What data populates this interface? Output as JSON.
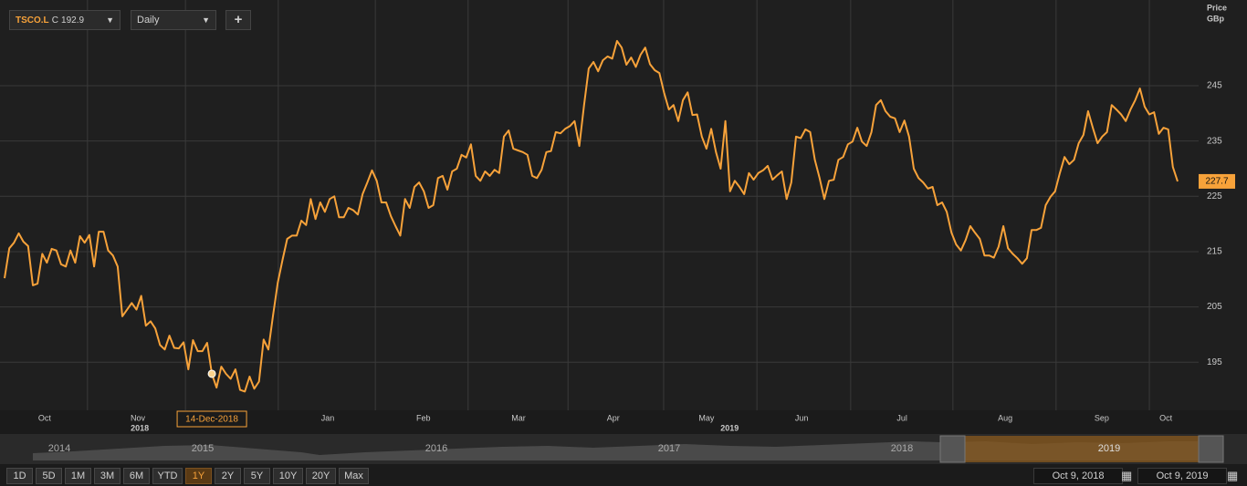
{
  "toolbar": {
    "close_label": "C",
    "interval": "Daily",
    "add": "+"
  },
  "chart_data": {
    "type": "line",
    "series": [
      {
        "name": "TSCO.L",
        "color": "#f7a23a",
        "values": [
          210.2,
          215.6,
          216.6,
          218.3,
          216.8,
          216.0,
          208.9,
          209.2,
          214.6,
          213.0,
          215.5,
          215.2,
          212.7,
          212.3,
          215.2,
          213.0,
          217.8,
          216.6,
          218.0,
          212.3,
          218.6,
          218.6,
          215.2,
          214.3,
          212.3,
          203.3,
          204.5,
          205.7,
          204.5,
          207.0,
          201.6,
          202.4,
          201.1,
          198.1,
          197.3,
          199.8,
          197.6,
          197.5,
          198.6,
          193.7,
          199.0,
          197.0,
          197.0,
          198.5,
          192.9,
          190.4,
          194.2,
          192.9,
          192.0,
          193.7,
          190.0,
          189.7,
          192.4,
          190.2,
          191.5,
          199.1,
          197.3,
          203.6,
          209.4,
          213.5,
          217.3,
          217.9,
          217.9,
          220.6,
          219.8,
          224.5,
          220.9,
          223.9,
          222.2,
          224.5,
          225.0,
          221.2,
          221.2,
          222.9,
          222.5,
          221.7,
          225.4,
          227.5,
          229.7,
          227.8,
          223.9,
          223.9,
          221.4,
          219.6,
          217.9,
          224.5,
          222.9,
          226.7,
          227.5,
          225.9,
          222.9,
          223.4,
          228.3,
          228.7,
          226.2,
          229.5,
          230.0,
          232.5,
          232.0,
          234.4,
          228.7,
          227.8,
          229.5,
          228.7,
          229.8,
          229.2,
          235.8,
          236.9,
          233.6,
          233.3,
          233.0,
          232.5,
          228.7,
          228.3,
          229.8,
          233.0,
          233.2,
          236.6,
          236.4,
          237.2,
          237.7,
          238.6,
          234.1,
          241.5,
          248.1,
          249.3,
          247.6,
          249.6,
          250.3,
          249.9,
          253.1,
          251.9,
          248.8,
          250.1,
          248.4,
          250.6,
          251.9,
          248.9,
          247.8,
          247.3,
          243.7,
          240.7,
          241.5,
          238.6,
          242.4,
          243.8,
          239.7,
          239.8,
          235.8,
          233.6,
          237.2,
          233.0,
          230.0,
          238.6,
          225.9,
          227.8,
          226.7,
          225.4,
          229.2,
          228.0,
          229.2,
          229.7,
          230.5,
          228.0,
          228.8,
          229.5,
          224.5,
          227.5,
          235.8,
          235.5,
          237.1,
          236.6,
          231.6,
          228.3,
          224.5,
          227.8,
          228.0,
          231.6,
          232.1,
          234.4,
          234.9,
          237.4,
          234.9,
          234.1,
          236.6,
          241.5,
          242.4,
          240.4,
          239.4,
          239.1,
          236.6,
          238.7,
          235.8,
          230.0,
          228.3,
          227.5,
          226.4,
          226.7,
          223.4,
          223.9,
          222.2,
          218.4,
          216.3,
          215.2,
          217.1,
          219.6,
          218.4,
          217.3,
          214.3,
          214.3,
          213.9,
          215.9,
          219.6,
          215.6,
          214.6,
          213.8,
          212.8,
          213.8,
          218.9,
          218.9,
          219.3,
          223.4,
          224.9,
          225.9,
          229.2,
          232.1,
          230.8,
          231.6,
          234.6,
          236.1,
          240.4,
          237.4,
          234.6,
          235.8,
          236.6,
          241.5,
          240.7,
          239.8,
          238.6,
          240.7,
          242.4,
          244.5,
          241.2,
          239.8,
          240.2,
          236.3,
          237.4,
          237.1,
          230.3,
          227.7
        ]
      }
    ],
    "ylim": [
      186.3,
      260.5
    ],
    "yticks": [
      195,
      205,
      215,
      225,
      235,
      245
    ],
    "y_axis_label": [
      "Price",
      "GBp"
    ],
    "xticks": [
      {
        "value": 8.5,
        "label": "Oct"
      },
      {
        "value": 28.3,
        "label": "Nov"
      },
      {
        "value": 68.6,
        "label": "Jan"
      },
      {
        "value": 88.9,
        "label": "Feb"
      },
      {
        "value": 109.1,
        "label": "Mar"
      },
      {
        "value": 129.2,
        "label": "Apr"
      },
      {
        "value": 149.0,
        "label": "May"
      },
      {
        "value": 169.2,
        "label": "Jun"
      },
      {
        "value": 190.5,
        "label": "Jul"
      },
      {
        "value": 212.4,
        "label": "Aug"
      },
      {
        "value": 232.9,
        "label": "Sep"
      },
      {
        "value": 246.5,
        "label": "Oct"
      }
    ],
    "xgrid": [
      17.6,
      38.4,
      58.1,
      78.7,
      98.4,
      119.6,
      139.9,
      159.7,
      179.6,
      201.3,
      223.2,
      243.0
    ],
    "year_labels": [
      {
        "value": 28.7,
        "label": "2018"
      },
      {
        "value": 153.9,
        "label": "2019"
      }
    ],
    "cursor": {
      "index": 44,
      "label": "14-Dec-2018"
    },
    "grid": true
  },
  "navigator": {
    "years": [
      "2014",
      "2015",
      "2016",
      "2017",
      "2018",
      "2019"
    ]
  },
  "range_buttons": [
    "1D",
    "5D",
    "1M",
    "3M",
    "6M",
    "YTD",
    "1Y",
    "2Y",
    "5Y",
    "10Y",
    "20Y",
    "Max"
  ],
  "active_range": 6,
  "date_from": "Oct 9, 2018",
  "date_to": "Oct 9, 2019"
}
